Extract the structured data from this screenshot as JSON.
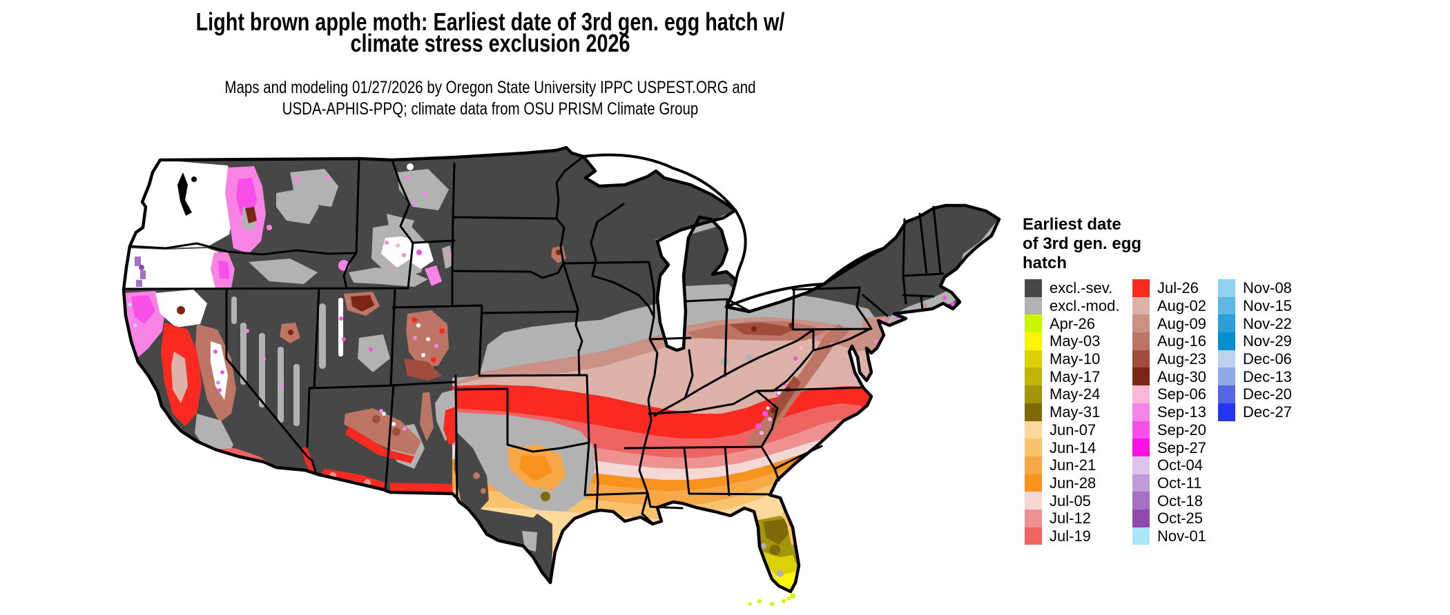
{
  "title": {
    "line1": "Light brown apple moth: Earliest date of 3rd gen. egg hatch w/",
    "line2": "climate stress exclusion 2026"
  },
  "subtitle": {
    "line1": "Maps and modeling 01/27/2026 by Oregon State University IPPC USPEST.ORG and",
    "line2": "USDA-APHIS-PPQ; climate data from OSU PRISM Climate Group"
  },
  "legend": {
    "title_lines": [
      "Earliest date",
      "of 3rd gen. egg",
      "hatch"
    ],
    "columns": [
      {
        "items": [
          {
            "label": "excl.-sev.",
            "color": "#474747"
          },
          {
            "label": "excl.-mod.",
            "color": "#b2b2b2"
          },
          {
            "label": "Apr-26",
            "color": "#ccf501"
          },
          {
            "label": "May-03",
            "color": "#fcf405"
          },
          {
            "label": "May-10",
            "color": "#dcd007"
          },
          {
            "label": "May-17",
            "color": "#c3b409"
          },
          {
            "label": "May-24",
            "color": "#a3950b"
          },
          {
            "label": "May-31",
            "color": "#7d6b0a"
          },
          {
            "label": "Jun-07",
            "color": "#fcd89c"
          },
          {
            "label": "Jun-14",
            "color": "#fbc26e"
          },
          {
            "label": "Jun-21",
            "color": "#f9a847"
          },
          {
            "label": "Jun-28",
            "color": "#f8941e"
          },
          {
            "label": "Jul-05",
            "color": "#f3d8d5"
          },
          {
            "label": "Jul-12",
            "color": "#ef9191"
          },
          {
            "label": "Jul-19",
            "color": "#f06363"
          }
        ]
      },
      {
        "items": [
          {
            "label": "Jul-26",
            "color": "#fb2a21"
          },
          {
            "label": "Aug-02",
            "color": "#dcb2a9"
          },
          {
            "label": "Aug-09",
            "color": "#cb9184"
          },
          {
            "label": "Aug-16",
            "color": "#bd7565"
          },
          {
            "label": "Aug-23",
            "color": "#a24c3c"
          },
          {
            "label": "Aug-30",
            "color": "#7c2415"
          },
          {
            "label": "Sep-06",
            "color": "#fab5d9"
          },
          {
            "label": "Sep-13",
            "color": "#f784e5"
          },
          {
            "label": "Sep-20",
            "color": "#f94fe9"
          },
          {
            "label": "Sep-27",
            "color": "#fb10e5"
          },
          {
            "label": "Oct-04",
            "color": "#dcc3eb"
          },
          {
            "label": "Oct-11",
            "color": "#bf9bd9"
          },
          {
            "label": "Oct-18",
            "color": "#a671c4"
          },
          {
            "label": "Oct-25",
            "color": "#8f4ab0"
          },
          {
            "label": "Nov-01",
            "color": "#abe5f8"
          }
        ]
      },
      {
        "items": [
          {
            "label": "Nov-08",
            "color": "#8ed3f0"
          },
          {
            "label": "Nov-15",
            "color": "#5fb8e4"
          },
          {
            "label": "Nov-22",
            "color": "#2d9fd6"
          },
          {
            "label": "Nov-29",
            "color": "#0090cd"
          },
          {
            "label": "Dec-06",
            "color": "#bdd2ea"
          },
          {
            "label": "Dec-13",
            "color": "#8fa8e8"
          },
          {
            "label": "Dec-20",
            "color": "#5467e4"
          },
          {
            "label": "Dec-27",
            "color": "#2436f2"
          }
        ]
      }
    ]
  },
  "map": {
    "palette": {
      "excl_sev": "#474747",
      "excl_mod": "#b2b2b2",
      "apr26": "#ccf501",
      "may03": "#fcf405",
      "may10": "#dcd007",
      "may17": "#c3b409",
      "may24": "#a3950b",
      "may31": "#7d6b0a",
      "jun07": "#fcd89c",
      "jun14": "#fbc26e",
      "jun21": "#f9a847",
      "jun28": "#f8941e",
      "jul05": "#f3d8d5",
      "jul12": "#ef9191",
      "jul19": "#f06363",
      "jul26": "#fb2a21",
      "aug02": "#dcb2a9",
      "aug09": "#cb9184",
      "aug16": "#bd7565",
      "aug23": "#a24c3c",
      "aug30": "#7c2415",
      "sep06": "#fab5d9",
      "sep13": "#f784e5",
      "sep20": "#f94fe9",
      "sep27": "#fb10e5",
      "oct04": "#dcc3eb",
      "oct11": "#bf9bd9",
      "oct18": "#a671c4",
      "oct25": "#8f4ab0",
      "nov01": "#abe5f8",
      "white": "#ffffff",
      "border": "#000000"
    }
  }
}
